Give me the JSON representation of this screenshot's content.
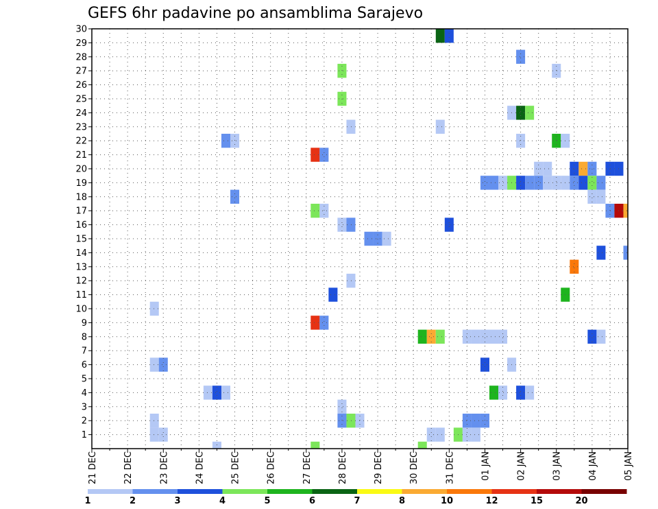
{
  "chart_data": {
    "type": "heatmap",
    "title": "GEFS 6hr padavine po ansamblima Sarajevo",
    "xlabel": "",
    "ylabel": "",
    "x_tick_labels": [
      "21 DEC",
      "22 DEC",
      "23 DEC",
      "24 DEC",
      "25 DEC",
      "26 DEC",
      "27 DEC",
      "28 DEC",
      "29 DEC",
      "30 DEC",
      "31 DEC",
      "01 JAN",
      "02 JAN",
      "03 JAN",
      "04 JAN",
      "05 JAN"
    ],
    "y_tick_labels": [
      "1",
      "2",
      "3",
      "4",
      "5",
      "6",
      "7",
      "8",
      "9",
      "10",
      "11",
      "12",
      "13",
      "14",
      "15",
      "16",
      "17",
      "18",
      "19",
      "20",
      "21",
      "22",
      "23",
      "24",
      "25",
      "26",
      "27",
      "28",
      "29",
      "30"
    ],
    "x_unit": "6-hour steps from 21 DEC 00Z",
    "x_range": [
      0,
      60
    ],
    "y_range": [
      0,
      30
    ],
    "grid": true,
    "colorbar": {
      "tick_labels": [
        "1",
        "2",
        "3",
        "4",
        "5",
        "6",
        "7",
        "8",
        "10",
        "12",
        "15",
        "20"
      ],
      "colors": [
        "#b4c8f5",
        "#6490ee",
        "#1e50dc",
        "#7ce65a",
        "#1eb41e",
        "#0a6414",
        "#fafa14",
        "#faaa32",
        "#fa780a",
        "#e63214",
        "#b40a0a",
        "#780000"
      ]
    },
    "cells": [
      {
        "step": 39,
        "member": 30,
        "level": 6
      },
      {
        "step": 40,
        "member": 30,
        "level": 3
      },
      {
        "step": 48,
        "member": 28,
        "level": 2
      },
      {
        "step": 28,
        "member": 27,
        "level": 4
      },
      {
        "step": 52,
        "member": 27,
        "level": 1
      },
      {
        "step": 28,
        "member": 25,
        "level": 4
      },
      {
        "step": 47,
        "member": 24,
        "level": 1
      },
      {
        "step": 48,
        "member": 24,
        "level": 6
      },
      {
        "step": 49,
        "member": 24,
        "level": 4
      },
      {
        "step": 29,
        "member": 23,
        "level": 1
      },
      {
        "step": 39,
        "member": 23,
        "level": 1
      },
      {
        "step": 15,
        "member": 22,
        "level": 2
      },
      {
        "step": 16,
        "member": 22,
        "level": 1
      },
      {
        "step": 48,
        "member": 22,
        "level": 1
      },
      {
        "step": 52,
        "member": 22,
        "level": 5
      },
      {
        "step": 53,
        "member": 22,
        "level": 1
      },
      {
        "step": 25,
        "member": 21,
        "level": 10
      },
      {
        "step": 26,
        "member": 21,
        "level": 2
      },
      {
        "step": 50,
        "member": 20,
        "level": 1
      },
      {
        "step": 51,
        "member": 20,
        "level": 1
      },
      {
        "step": 54,
        "member": 20,
        "level": 3
      },
      {
        "step": 55,
        "member": 20,
        "level": 8
      },
      {
        "step": 56,
        "member": 20,
        "level": 2
      },
      {
        "step": 58,
        "member": 20,
        "level": 3
      },
      {
        "step": 59,
        "member": 20,
        "level": 3
      },
      {
        "step": 44,
        "member": 19,
        "level": 2
      },
      {
        "step": 45,
        "member": 19,
        "level": 2
      },
      {
        "step": 46,
        "member": 19,
        "level": 1
      },
      {
        "step": 47,
        "member": 19,
        "level": 4
      },
      {
        "step": 48,
        "member": 19,
        "level": 3
      },
      {
        "step": 49,
        "member": 19,
        "level": 2
      },
      {
        "step": 50,
        "member": 19,
        "level": 2
      },
      {
        "step": 51,
        "member": 19,
        "level": 1
      },
      {
        "step": 52,
        "member": 19,
        "level": 1
      },
      {
        "step": 53,
        "member": 19,
        "level": 1
      },
      {
        "step": 54,
        "member": 19,
        "level": 2
      },
      {
        "step": 55,
        "member": 19,
        "level": 3
      },
      {
        "step": 56,
        "member": 19,
        "level": 4
      },
      {
        "step": 57,
        "member": 19,
        "level": 2
      },
      {
        "step": 16,
        "member": 18,
        "level": 2
      },
      {
        "step": 56,
        "member": 18,
        "level": 1
      },
      {
        "step": 57,
        "member": 18,
        "level": 1
      },
      {
        "step": 25,
        "member": 17,
        "level": 4
      },
      {
        "step": 26,
        "member": 17,
        "level": 1
      },
      {
        "step": 58,
        "member": 17,
        "level": 2
      },
      {
        "step": 59,
        "member": 17,
        "level": 11
      },
      {
        "step": 60,
        "member": 17,
        "level": 8
      },
      {
        "step": 28,
        "member": 16,
        "level": 1
      },
      {
        "step": 29,
        "member": 16,
        "level": 2
      },
      {
        "step": 40,
        "member": 16,
        "level": 3
      },
      {
        "step": 31,
        "member": 15,
        "level": 2
      },
      {
        "step": 32,
        "member": 15,
        "level": 2
      },
      {
        "step": 33,
        "member": 15,
        "level": 1
      },
      {
        "step": 57,
        "member": 14,
        "level": 3
      },
      {
        "step": 60,
        "member": 14,
        "level": 2
      },
      {
        "step": 54,
        "member": 13,
        "level": 9
      },
      {
        "step": 29,
        "member": 12,
        "level": 1
      },
      {
        "step": 53,
        "member": 11,
        "level": 5
      },
      {
        "step": 27,
        "member": 11,
        "level": 3
      },
      {
        "step": 7,
        "member": 10,
        "level": 1
      },
      {
        "step": 25,
        "member": 9,
        "level": 10
      },
      {
        "step": 26,
        "member": 9,
        "level": 2
      },
      {
        "step": 37,
        "member": 8,
        "level": 5
      },
      {
        "step": 38,
        "member": 8,
        "level": 8
      },
      {
        "step": 39,
        "member": 8,
        "level": 4
      },
      {
        "step": 42,
        "member": 8,
        "level": 1
      },
      {
        "step": 43,
        "member": 8,
        "level": 1
      },
      {
        "step": 44,
        "member": 8,
        "level": 1
      },
      {
        "step": 45,
        "member": 8,
        "level": 1
      },
      {
        "step": 46,
        "member": 8,
        "level": 1
      },
      {
        "step": 56,
        "member": 8,
        "level": 3
      },
      {
        "step": 57,
        "member": 8,
        "level": 1
      },
      {
        "step": 7,
        "member": 6,
        "level": 1
      },
      {
        "step": 8,
        "member": 6,
        "level": 2
      },
      {
        "step": 44,
        "member": 6,
        "level": 3
      },
      {
        "step": 47,
        "member": 6,
        "level": 1
      },
      {
        "step": 13,
        "member": 4,
        "level": 1
      },
      {
        "step": 14,
        "member": 4,
        "level": 3
      },
      {
        "step": 15,
        "member": 4,
        "level": 1
      },
      {
        "step": 45,
        "member": 4,
        "level": 5
      },
      {
        "step": 46,
        "member": 4,
        "level": 1
      },
      {
        "step": 48,
        "member": 4,
        "level": 3
      },
      {
        "step": 49,
        "member": 4,
        "level": 1
      },
      {
        "step": 28,
        "member": 3,
        "level": 1
      },
      {
        "step": 7,
        "member": 2,
        "level": 1
      },
      {
        "step": 28,
        "member": 2,
        "level": 2
      },
      {
        "step": 29,
        "member": 2,
        "level": 4
      },
      {
        "step": 30,
        "member": 2,
        "level": 1
      },
      {
        "step": 42,
        "member": 2,
        "level": 2
      },
      {
        "step": 43,
        "member": 2,
        "level": 2
      },
      {
        "step": 44,
        "member": 2,
        "level": 2
      },
      {
        "step": 7,
        "member": 1,
        "level": 1
      },
      {
        "step": 8,
        "member": 1,
        "level": 1
      },
      {
        "step": 38,
        "member": 1,
        "level": 1
      },
      {
        "step": 39,
        "member": 1,
        "level": 1
      },
      {
        "step": 41,
        "member": 1,
        "level": 4
      },
      {
        "step": 42,
        "member": 1,
        "level": 1
      },
      {
        "step": 43,
        "member": 1,
        "level": 1
      },
      {
        "step": 14,
        "member": 0,
        "level": 1
      },
      {
        "step": 25,
        "member": 0,
        "level": 4
      },
      {
        "step": 37,
        "member": 0,
        "level": 4
      }
    ]
  }
}
